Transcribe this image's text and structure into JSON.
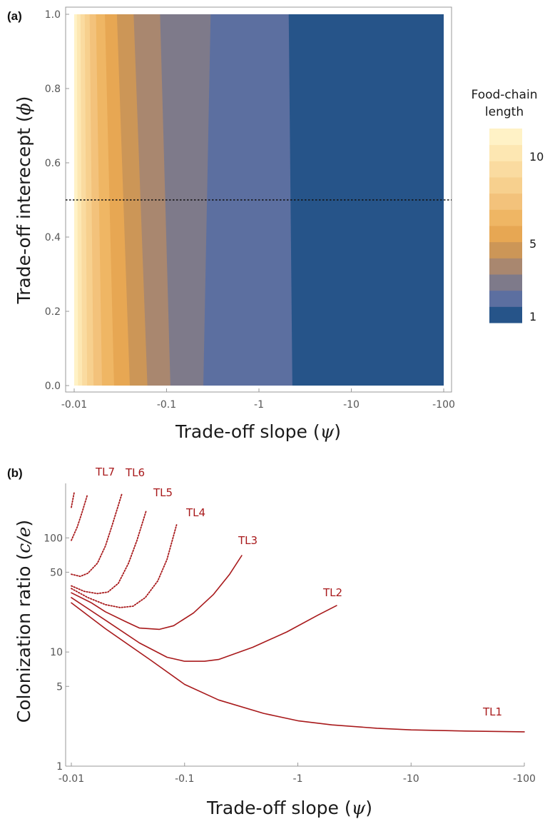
{
  "colors": {
    "curve": "#a8191b",
    "frame": "#999999",
    "tick_text": "#555555",
    "palette": [
      "#265489",
      "#5c6fa0",
      "#7e7a8a",
      "#a9876f",
      "#cc9657",
      "#e7a753",
      "#efb664",
      "#f3c27b",
      "#f7d08e",
      "#fadba0",
      "#fde7b2",
      "#fff2c6"
    ]
  },
  "panel_a": {
    "panel_label": "(a)",
    "xlabel_text": "Trade-off slope (",
    "xlabel_symbol": "ψ",
    "xlabel_close": ")",
    "ylabel_text": "Trade-off interecept (",
    "ylabel_symbol": "ϕ",
    "ylabel_close": ")",
    "legend": {
      "title_line1": "Food-chain",
      "title_line2": "length",
      "ticks": [
        "1",
        "5",
        "10"
      ]
    }
  },
  "panel_b": {
    "panel_label": "(b)",
    "xlabel_text": "Trade-off slope (",
    "xlabel_symbol": "ψ",
    "xlabel_close": ")",
    "ylabel_text": "Colonization ratio (",
    "ylabel_symbol": "c/e",
    "ylabel_close": ")"
  },
  "chart_data": [
    {
      "type": "heatmap",
      "panel": "(a)",
      "xlabel": "Trade-off slope (ψ)",
      "ylabel": "Trade-off interecept (ϕ)",
      "x_scale": "log (magnitude of ψ)",
      "x_ticks": [
        "-0.01",
        "-0.1",
        "-1",
        "-10",
        "-100"
      ],
      "y_ticks": [
        "0.0",
        "0.2",
        "0.4",
        "0.6",
        "0.8",
        "1.0"
      ],
      "xlim": [
        -0.01,
        -100
      ],
      "ylim": [
        0,
        1
      ],
      "reference_line": {
        "phi": 0.5,
        "style": "dotted"
      },
      "colorbar": {
        "title": "Food-chain length",
        "ticks": [
          "1",
          "5",
          "10"
        ],
        "levels": [
          1,
          2,
          3,
          4,
          5,
          6,
          7,
          8,
          9,
          10,
          11,
          12
        ]
      },
      "level_boundaries": [
        {
          "between": [
            1,
            2
          ],
          "psi_at_phi0": -2.3,
          "psi_at_phi1": -2.1
        },
        {
          "between": [
            2,
            3
          ],
          "psi_at_phi0": -0.25,
          "psi_at_phi1": -0.3
        },
        {
          "between": [
            3,
            4
          ],
          "psi_at_phi0": -0.11,
          "psi_at_phi1": -0.085
        },
        {
          "between": [
            4,
            5
          ],
          "psi_at_phi0": -0.062,
          "psi_at_phi1": -0.044
        },
        {
          "between": [
            5,
            6
          ],
          "psi_at_phi0": -0.04,
          "psi_at_phi1": -0.029
        },
        {
          "between": [
            6,
            7
          ],
          "psi_at_phi0": -0.027,
          "psi_at_phi1": -0.0215
        },
        {
          "between": [
            7,
            8
          ],
          "psi_at_phi0": -0.02,
          "psi_at_phi1": -0.0172
        },
        {
          "between": [
            8,
            9
          ],
          "psi_at_phi0": -0.0162,
          "psi_at_phi1": -0.0147
        },
        {
          "between": [
            9,
            10
          ],
          "psi_at_phi0": -0.0138,
          "psi_at_phi1": -0.013
        },
        {
          "between": [
            10,
            11
          ],
          "psi_at_phi0": -0.0122,
          "psi_at_phi1": -0.0117
        },
        {
          "between": [
            11,
            12
          ],
          "psi_at_phi0": -0.011,
          "psi_at_phi1": -0.0107
        }
      ]
    },
    {
      "type": "line",
      "panel": "(b)",
      "xlabel": "Trade-off slope (ψ)",
      "ylabel": "Colonization ratio (c/e)",
      "x_scale": "log (magnitude of ψ)",
      "y_scale": "log",
      "x_ticks": [
        "-0.01",
        "-0.1",
        "-1",
        "-10",
        "-100"
      ],
      "y_ticks": [
        "1",
        "5",
        "10",
        "50",
        "100"
      ],
      "xlim": [
        -0.01,
        -100
      ],
      "ylim": [
        1,
        300
      ],
      "series": [
        {
          "name": "TL1",
          "points": [
            [
              -0.01,
              27
            ],
            [
              -0.02,
              16
            ],
            [
              -0.05,
              8.5
            ],
            [
              -0.1,
              5.2
            ],
            [
              -0.2,
              3.8
            ],
            [
              -0.5,
              2.9
            ],
            [
              -1,
              2.5
            ],
            [
              -2,
              2.3
            ],
            [
              -5,
              2.15
            ],
            [
              -10,
              2.08
            ],
            [
              -30,
              2.03
            ],
            [
              -100,
              2.0
            ]
          ]
        },
        {
          "name": "TL2",
          "points": [
            [
              -0.01,
              30
            ],
            [
              -0.02,
              19
            ],
            [
              -0.04,
              12
            ],
            [
              -0.07,
              9
            ],
            [
              -0.1,
              8.3
            ],
            [
              -0.15,
              8.3
            ],
            [
              -0.2,
              8.6
            ],
            [
              -0.4,
              11
            ],
            [
              -0.8,
              15
            ],
            [
              -1.5,
              21
            ],
            [
              -2.2,
              25.5
            ]
          ]
        },
        {
          "name": "TL3",
          "points": [
            [
              -0.01,
              33
            ],
            [
              -0.015,
              27
            ],
            [
              -0.02,
              22.5
            ],
            [
              -0.03,
              18.5
            ],
            [
              -0.04,
              16.2
            ],
            [
              -0.06,
              15.8
            ],
            [
              -0.08,
              17
            ],
            [
              -0.12,
              22
            ],
            [
              -0.18,
              32
            ],
            [
              -0.25,
              48
            ],
            [
              -0.32,
              70
            ]
          ]
        },
        {
          "name": "TL4",
          "points": [
            [
              -0.01,
              36
            ],
            [
              -0.014,
              30
            ],
            [
              -0.02,
              26
            ],
            [
              -0.027,
              24.5
            ],
            [
              -0.035,
              25.2
            ],
            [
              -0.045,
              30
            ],
            [
              -0.058,
              42
            ],
            [
              -0.07,
              65
            ],
            [
              -0.085,
              130
            ]
          ]
        },
        {
          "name": "TL5",
          "points": [
            [
              -0.01,
              38
            ],
            [
              -0.013,
              34
            ],
            [
              -0.017,
              32.5
            ],
            [
              -0.021,
              33.5
            ],
            [
              -0.026,
              40
            ],
            [
              -0.032,
              60
            ],
            [
              -0.038,
              95
            ],
            [
              -0.046,
              175
            ]
          ]
        },
        {
          "name": "TL6",
          "points": [
            [
              -0.01,
              48
            ],
            [
              -0.012,
              46
            ],
            [
              -0.014,
              49
            ],
            [
              -0.017,
              60
            ],
            [
              -0.02,
              85
            ],
            [
              -0.023,
              130
            ],
            [
              -0.028,
              245
            ]
          ]
        },
        {
          "name": "TL7",
          "points": [
            [
              -0.01,
              95
            ],
            [
              -0.0113,
              125
            ],
            [
              -0.0125,
              170
            ],
            [
              -0.0138,
              235
            ]
          ]
        },
        {
          "name": "",
          "points": [
            [
              -0.01,
              185
            ],
            [
              -0.0103,
              215
            ],
            [
              -0.0106,
              250
            ]
          ]
        }
      ]
    }
  ]
}
